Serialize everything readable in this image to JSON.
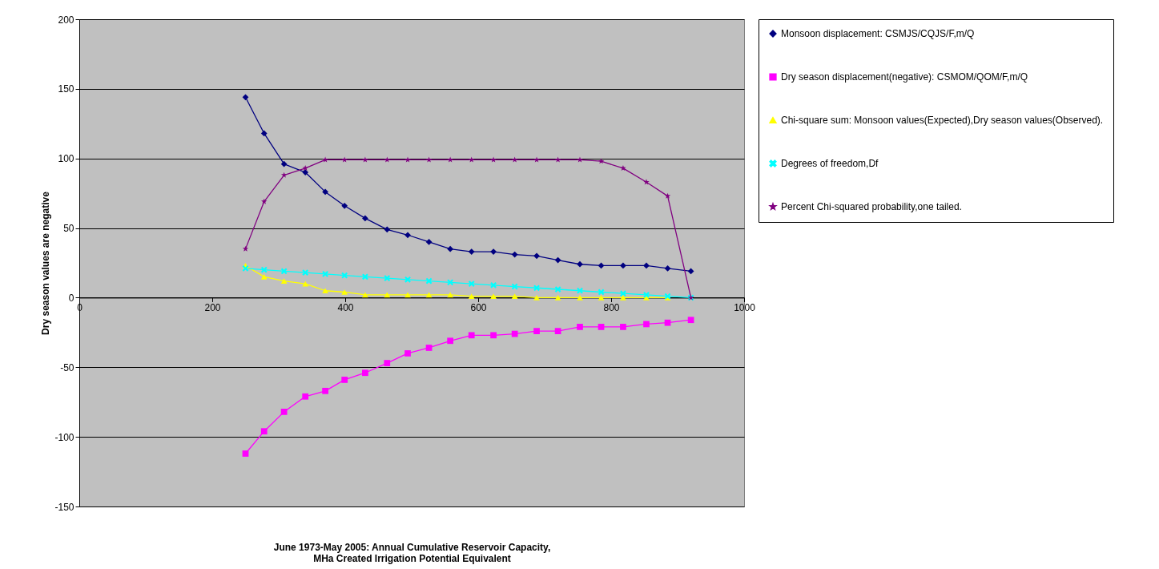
{
  "chart_data": {
    "type": "line",
    "xlabel": "June 1973-May 2005: Annual Cumulative Reservoir Capacity, MHa Created Irrigation Potential Equivalent",
    "ylabel": "Dry season values are negative",
    "x": [
      250,
      278,
      308,
      340,
      370,
      399,
      430,
      463,
      494,
      526,
      558,
      590,
      623,
      655,
      688,
      720,
      753,
      785,
      818,
      853,
      885,
      920
    ],
    "series": [
      {
        "name": "Monsoon displacement: CSMJS/CQJS/F,m/Q",
        "color": "#000080",
        "marker": "diamond",
        "values": [
          144,
          118,
          96,
          90,
          76,
          66,
          57,
          49,
          45,
          40,
          35,
          33,
          33,
          31,
          30,
          27,
          24,
          23,
          23,
          23,
          21,
          19
        ]
      },
      {
        "name": "Dry season displacement(negative): CSMOM/QOM/F,m/Q",
        "color": "#ff00ff",
        "marker": "square",
        "values": [
          -112,
          -96,
          -82,
          -71,
          -67,
          -59,
          -54,
          -47,
          -40,
          -36,
          -31,
          -27,
          -27,
          -26,
          -24,
          -24,
          -21,
          -21,
          -21,
          -19,
          -18,
          -16
        ]
      },
      {
        "name": "Chi-square sum: Monsoon values(Expected),Dry season values(Observed).",
        "color": "#ffff00",
        "marker": "triangle",
        "values": [
          23,
          15,
          12,
          10,
          5,
          4,
          2,
          2,
          2,
          2,
          2,
          1,
          1,
          1,
          0,
          0,
          0,
          0,
          0,
          0,
          0,
          null
        ]
      },
      {
        "name": "Degrees of freedom,Df",
        "color": "#00ffff",
        "marker": "cross",
        "values": [
          21,
          20,
          19,
          18,
          17,
          16,
          15,
          14,
          13,
          12,
          11,
          10,
          9,
          8,
          7,
          6,
          5,
          4,
          3,
          2,
          1,
          0
        ]
      },
      {
        "name": "Percent Chi-squared probability,one tailed.",
        "color": "#800080",
        "marker": "star",
        "values": [
          35,
          69,
          88,
          93,
          99,
          99,
          99,
          99,
          99,
          99,
          99,
          99,
          99,
          99,
          99,
          99,
          99,
          98,
          93,
          83,
          73,
          0
        ]
      }
    ],
    "xlim": [
      0,
      1000
    ],
    "xticks": [
      0,
      200,
      400,
      600,
      800,
      1000
    ],
    "ylim": [
      -150,
      200
    ],
    "yticks": [
      -150,
      -100,
      -50,
      0,
      50,
      100,
      150,
      200
    ],
    "grid": "y",
    "legend": "right",
    "line_style": "solid"
  }
}
